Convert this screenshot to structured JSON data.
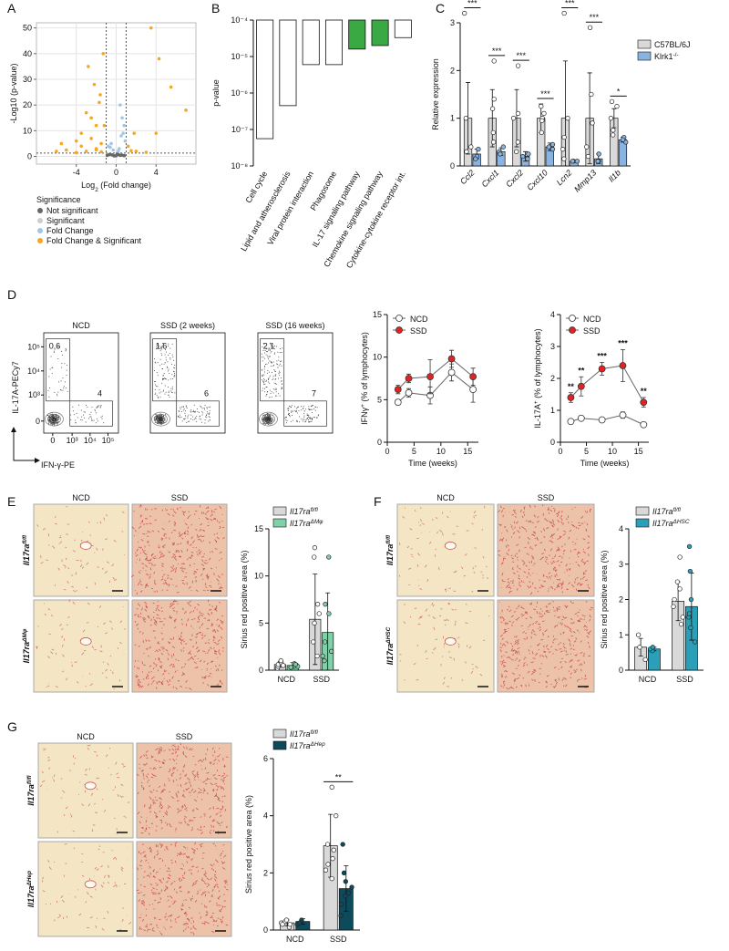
{
  "chart_data": [
    {
      "type": "scatter",
      "panel": "A",
      "xlabel": [
        "Log",
        {
          "sub": "2"
        },
        " (Fold change)"
      ],
      "ylabel": "-Log10 (p-value)",
      "xlim": [
        -8,
        8
      ],
      "xticks": [
        -4,
        0,
        4
      ],
      "ylim": [
        -3,
        52
      ],
      "yticks": [
        0,
        10,
        20,
        30,
        40,
        50
      ],
      "grid": true,
      "x_thresholds": [
        -1,
        1
      ],
      "y_threshold": 1.3,
      "legend_title": "Significance",
      "series": [
        {
          "name": "Not significant",
          "color": "#666666",
          "x": [
            0,
            -0.4,
            0.4,
            0.2,
            -0.2,
            0.6,
            -0.7,
            0.8,
            -0.9,
            0.1
          ],
          "y": [
            0.3,
            0.6,
            0.4,
            0.8,
            0.2,
            0.5,
            0.7,
            0.3,
            0.4,
            1.0
          ]
        },
        {
          "name": "Significant",
          "color": "#cccccc",
          "x": [],
          "y": []
        },
        {
          "name": "Fold Change",
          "color": "#9cc8e6",
          "x": [
            0.5,
            0.8,
            -0.5,
            0.3,
            0.9,
            -0.8,
            0.6,
            0.2,
            -0.3,
            0.7,
            -0.6,
            0.4
          ],
          "y": [
            8,
            12,
            5,
            3,
            6,
            4,
            15,
            2,
            2.5,
            9,
            3.5,
            20
          ]
        },
        {
          "name": "Fold Change & Significant",
          "color": "#f5a623",
          "x": [
            3.5,
            4.3,
            5.5,
            -1.6,
            -2.8,
            -1.7,
            -3,
            -2.5,
            -1.2,
            -2,
            7,
            4,
            -4,
            -5.5,
            -3.5,
            -2,
            -1.5,
            1.8,
            -1.3,
            -2.2,
            -3,
            -4,
            -2,
            -1.5,
            2,
            3,
            1.5,
            -6,
            -5,
            -2.5,
            -3.5,
            1.2
          ],
          "y": [
            50,
            38,
            27,
            24,
            35,
            21,
            17,
            15,
            12,
            12,
            18,
            9,
            6,
            5,
            4,
            3,
            5,
            9,
            40,
            28,
            2,
            1.5,
            2.5,
            1.8,
            2,
            1.6,
            2.2,
            2,
            2.5,
            7,
            9,
            4
          ]
        }
      ]
    },
    {
      "type": "bar",
      "panel": "B",
      "log_y": true,
      "ylabel": "p-value",
      "ylim": [
        1e-08,
        0.0001
      ],
      "yticks": [
        {
          "value": 1e-08,
          "label": "10⁻⁸"
        },
        {
          "value": 1e-07,
          "label": "10⁻⁷"
        },
        {
          "value": 1e-06,
          "label": "10⁻⁶"
        },
        {
          "value": 1e-05,
          "label": "10⁻⁵"
        },
        {
          "value": 0.0001,
          "label": "10⁻⁴"
        }
      ],
      "categories": [
        "Cell cycle",
        "Lipid and atherosclerosis",
        "Viral protein interaction",
        "Phagosome",
        "IL-17 signaling pathway",
        "Chemokine signaling pathway",
        "Cytokine-cytokine receptor int."
      ],
      "values": [
        5.6e-08,
        4.5e-07,
        6e-06,
        6e-06,
        1.6e-05,
        2e-05,
        3.3e-05
      ],
      "colors": [
        "#ffffff",
        "#ffffff",
        "#ffffff",
        "#ffffff",
        "#3aa843",
        "#3aa843",
        "#ffffff"
      ]
    },
    {
      "type": "grouped_bar",
      "panel": "C",
      "ylabel": "Relative expression",
      "ylim": [
        0,
        3
      ],
      "yticks": [
        0,
        1,
        2,
        3
      ],
      "italic_categories": true,
      "categories": [
        "Ccl2",
        "Cxcl1",
        "Cxcl2",
        "Cxcl10",
        "Lcn2",
        "Mmp13",
        "Il1b"
      ],
      "annotations": [
        "***",
        "***",
        "***",
        "***",
        "***",
        "***",
        "*"
      ],
      "series": [
        {
          "name": "C57BL/6J",
          "color": "#d9d9d9",
          "values": [
            1,
            1,
            1,
            1,
            1,
            1,
            1
          ],
          "errors": [
            0.75,
            0.6,
            0.6,
            0.3,
            1.2,
            0.95,
            0.2
          ],
          "points": [
            [
              3.2,
              0.4,
              0.3,
              1.0
            ],
            [
              2.2,
              1.4,
              1.2,
              0.5,
              0.7
            ],
            [
              2.1,
              1.1,
              1.0,
              0.5,
              0.3
            ],
            [
              1.25,
              1.1,
              1.0,
              0.95,
              0.7
            ],
            [
              3.2,
              1.0,
              0.6,
              0.35,
              0.15
            ],
            [
              2.9,
              1.5,
              0.9,
              0.4,
              0.2
            ],
            [
              1.35,
              1.25,
              1.0,
              0.75,
              0.65
            ]
          ]
        },
        {
          "name": [
            "Klrk1",
            {
              "sup": "-/-"
            }
          ],
          "color": "#8ab4e0",
          "values": [
            0.25,
            0.3,
            0.2,
            0.4,
            0.1,
            0.15,
            0.55
          ],
          "errors": [
            0.1,
            0.08,
            0.1,
            0.08,
            0.02,
            0.1,
            0.05
          ],
          "points": [
            [
              0.35,
              0.2,
              0.15
            ],
            [
              0.4,
              0.3,
              0.25
            ],
            [
              0.25,
              0.15,
              0.2
            ],
            [
              0.45,
              0.35,
              0.4
            ],
            [
              0.1,
              0.1,
              0.1
            ],
            [
              0.25,
              0.1,
              0.1
            ],
            [
              0.6,
              0.5,
              0.55
            ]
          ]
        }
      ]
    },
    {
      "type": "flow",
      "panel": "D",
      "xlabel": "IFN-γ-PE",
      "ylabel": "IL-17A-PECy7",
      "ticks": [
        0,
        {
          "value": 1000,
          "label": "10³"
        },
        {
          "value": 10000,
          "label": "10⁴"
        },
        {
          "value": 100000,
          "label": "10⁵"
        }
      ],
      "plots": [
        {
          "title": "NCD",
          "gates": [
            "0,6",
            "4"
          ]
        },
        {
          "title": "SSD (2 weeks)",
          "gates": [
            "1,6",
            "6"
          ]
        },
        {
          "title": "SSD (16 weeks)",
          "gates": [
            "2,1",
            "7"
          ]
        }
      ]
    },
    {
      "type": "line",
      "xlabel": "Time (weeks)",
      "ylabel": [
        "IFNγ",
        {
          "sup": "+"
        },
        " (% of lymphocytes)"
      ],
      "x": [
        2,
        4,
        8,
        12,
        16
      ],
      "xlim": [
        0,
        17
      ],
      "xticks": [
        0,
        5,
        10,
        15
      ],
      "ylim": [
        0,
        15
      ],
      "yticks": [
        0,
        5,
        10,
        15
      ],
      "series": [
        {
          "name": "NCD",
          "color": "#ffffff",
          "values": [
            4.7,
            5.8,
            5.5,
            8.2,
            6.2
          ],
          "errors": [
            0.3,
            0.5,
            1,
            1,
            1.5
          ]
        },
        {
          "name": "SSD",
          "color": "#e02424",
          "values": [
            6.2,
            7.5,
            7.7,
            9.8,
            7.7
          ],
          "errors": [
            0.5,
            0.5,
            2,
            1,
            1
          ]
        }
      ]
    },
    {
      "type": "line",
      "xlabel": "Time (weeks)",
      "ylabel": [
        "IL-17A",
        {
          "sup": "+"
        },
        " (% of lymphocytes)"
      ],
      "x": [
        2,
        4,
        8,
        12,
        16
      ],
      "xlim": [
        0,
        17
      ],
      "xticks": [
        0,
        5,
        10,
        15
      ],
      "ylim": [
        0,
        4
      ],
      "yticks": [
        0,
        1,
        2,
        3,
        4
      ],
      "annotations": [
        "**",
        "**",
        "***",
        "***",
        "**"
      ],
      "series": [
        {
          "name": "NCD",
          "color": "#ffffff",
          "values": [
            0.65,
            0.75,
            0.7,
            0.85,
            0.55
          ],
          "errors": [
            0.05,
            0.05,
            0.05,
            0.1,
            0.05
          ]
        },
        {
          "name": "SSD",
          "color": "#e02424",
          "values": [
            1.4,
            1.75,
            2.3,
            2.4,
            1.25
          ],
          "errors": [
            0.15,
            0.3,
            0.2,
            0.5,
            0.15
          ]
        }
      ]
    },
    {
      "type": "grouped_bar",
      "panel": "E",
      "ylabel": "Sirius red positive area (%)",
      "ylim": [
        0,
        15
      ],
      "yticks": [
        0,
        5,
        10,
        15
      ],
      "legend_italic": true,
      "micrographs": {
        "columns": [
          "NCD",
          "SSD"
        ],
        "rows": [
          [
            "Il17ra",
            {
              "sup": "fl/fl"
            }
          ],
          [
            "Il17ra",
            {
              "sup": "ΔMφ"
            }
          ]
        ]
      },
      "categories": [
        "NCD",
        "SSD"
      ],
      "series": [
        {
          "name": [
            "Il17ra",
            {
              "sup": "fl/fl"
            }
          ],
          "color": "#d9d9d9",
          "values": [
            0.6,
            5.4
          ],
          "errors": [
            0.3,
            4.8
          ],
          "points": [
            [
              0.2,
              0.4,
              0.6,
              0.8,
              1.0,
              0.5
            ],
            [
              1.5,
              3,
              5,
              7,
              12,
              13,
              6
            ]
          ]
        },
        {
          "name": [
            "Il17ra",
            {
              "sup": "ΔMφ"
            }
          ],
          "color": "#7fd1a8",
          "values": [
            0.5,
            4.0
          ],
          "errors": [
            0.3,
            4.2
          ],
          "points": [
            [
              0.3,
              0.5,
              0.7,
              0.4,
              0.6
            ],
            [
              1,
              2,
              3,
              6,
              7,
              12,
              1.5
            ]
          ]
        }
      ]
    },
    {
      "type": "grouped_bar",
      "panel": "F",
      "ylabel": "Sirius red positive area (%)",
      "ylim": [
        0,
        4
      ],
      "yticks": [
        0,
        1,
        2,
        3,
        4
      ],
      "legend_italic": true,
      "micrographs": {
        "columns": [
          "NCD",
          "SSD"
        ],
        "rows": [
          [
            "Il17ra",
            {
              "sup": "fl/fl"
            }
          ],
          [
            "Il17ra",
            {
              "sup": "ΔHSC"
            }
          ]
        ]
      },
      "categories": [
        "NCD",
        "SSD"
      ],
      "series": [
        {
          "name": [
            "Il17ra",
            {
              "sup": "fl/fl"
            }
          ],
          "color": "#d9d9d9",
          "values": [
            0.65,
            1.95
          ],
          "errors": [
            0.25,
            0.55
          ],
          "points": [
            [
              0.3,
              0.65,
              1.0
            ],
            [
              1.3,
              1.5,
              1.8,
              2.0,
              2.3,
              2.5,
              3.2
            ]
          ]
        },
        {
          "name": [
            "Il17ra",
            {
              "sup": "ΔHSC"
            }
          ],
          "color": "#2aa0b8",
          "values": [
            0.6,
            1.8
          ],
          "errors": [
            0.05,
            0.95
          ],
          "points": [
            [
              0.55,
              0.6,
              0.65
            ],
            [
              0.8,
              1.2,
              1.5,
              2.0,
              2.8,
              3.5,
              1.6
            ]
          ]
        }
      ]
    },
    {
      "type": "grouped_bar",
      "panel": "G",
      "ylabel": "Sirius red positive area (%)",
      "ylim": [
        0,
        6
      ],
      "yticks": [
        0,
        2,
        4,
        6
      ],
      "legend_italic": true,
      "micrographs": {
        "columns": [
          "NCD",
          "SSD"
        ],
        "rows": [
          [
            "Il17ra",
            {
              "sup": "fl/fl"
            }
          ],
          [
            "Il17ra",
            {
              "sup": "ΔHep"
            }
          ]
        ]
      },
      "categories": [
        "NCD",
        "SSD"
      ],
      "annotations": [
        null,
        "**"
      ],
      "series": [
        {
          "name": [
            "Il17ra",
            {
              "sup": "fl/fl"
            }
          ],
          "color": "#d9d9d9",
          "values": [
            0.25,
            2.95
          ],
          "errors": [
            0.1,
            1.1
          ],
          "points": [
            [
              0.1,
              0.2,
              0.25,
              0.3,
              0.35,
              0.2
            ],
            [
              1.8,
              2.1,
              2.3,
              2.5,
              2.8,
              3.0,
              4.0,
              5.0
            ]
          ]
        },
        {
          "name": [
            "Il17ra",
            {
              "sup": "ΔHep"
            }
          ],
          "color": "#0d4a5c",
          "values": [
            0.3,
            1.45
          ],
          "errors": [
            0.1,
            0.8
          ],
          "points": [
            [
              0.2,
              0.3,
              0.35,
              0.25
            ],
            [
              0.5,
              0.9,
              1.2,
              1.3,
              1.5,
              1.7,
              2.0,
              3.0
            ]
          ]
        }
      ]
    }
  ]
}
